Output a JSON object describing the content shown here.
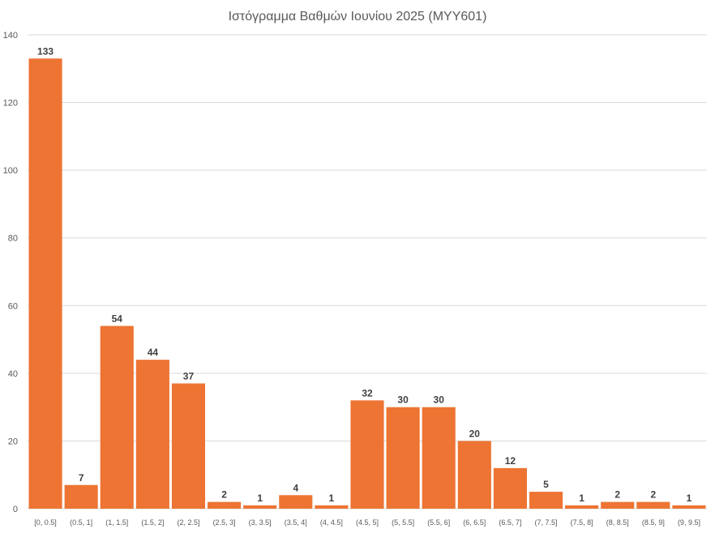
{
  "chart_data": {
    "type": "bar",
    "title": "Ιστόγραμμα Βαθμών Ιουνίου 2025 (ΜΥΥ601)",
    "xlabel": "",
    "ylabel": "",
    "categories": [
      "[0, 0.5]",
      "(0.5, 1]",
      "(1, 1.5]",
      "(1.5, 2]",
      "(2, 2.5]",
      "(2.5, 3]",
      "(3, 3.5]",
      "(3.5, 4]",
      "(4, 4.5]",
      "(4.5, 5]",
      "(5, 5.5]",
      "(5.5, 6]",
      "(6, 6.5]",
      "(6.5, 7]",
      "(7, 7.5]",
      "(7.5, 8]",
      "(8, 8.5]",
      "(8.5, 9]",
      "(9, 9.5]"
    ],
    "values": [
      133,
      7,
      54,
      44,
      37,
      2,
      1,
      4,
      1,
      32,
      30,
      30,
      20,
      12,
      5,
      1,
      2,
      2,
      1
    ],
    "ylim": [
      0,
      140
    ],
    "yticks": [
      0,
      20,
      40,
      60,
      80,
      100,
      120,
      140
    ],
    "grid": true,
    "legend": "none",
    "bar_color": "#ED7433",
    "data_labels": true
  }
}
